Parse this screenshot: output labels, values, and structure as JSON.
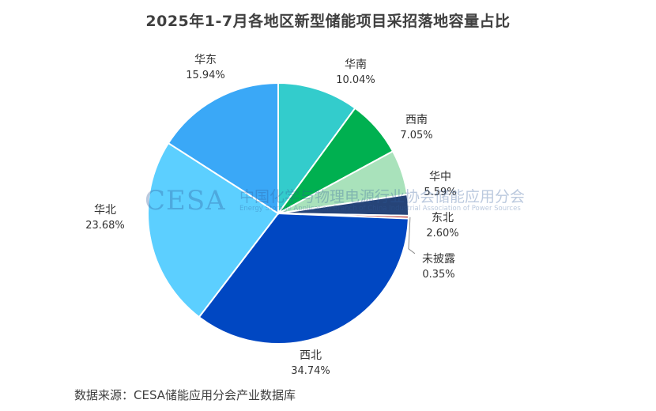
{
  "chart_data": {
    "type": "pie",
    "title": "2025年1-7月各地区新型储能项目采招落地容量占比",
    "unit": "%",
    "slices": [
      {
        "name": "华南",
        "value": 10.04,
        "pct_label": "10.04%",
        "color": "#33CCCC"
      },
      {
        "name": "西南",
        "value": 7.05,
        "pct_label": "7.05%",
        "color": "#00B050"
      },
      {
        "name": "华中",
        "value": 5.59,
        "pct_label": "5.59%",
        "color": "#A9E2BB"
      },
      {
        "name": "东北",
        "value": 2.6,
        "pct_label": "2.60%",
        "color": "#264478"
      },
      {
        "name": "未披露",
        "value": 0.35,
        "pct_label": "0.35%",
        "color": "#C0504D"
      },
      {
        "name": "西北",
        "value": 34.74,
        "pct_label": "34.74%",
        "color": "#0047C2"
      },
      {
        "name": "华北",
        "value": 23.68,
        "pct_label": "23.68%",
        "color": "#5CCFFF"
      },
      {
        "name": "华东",
        "value": 15.94,
        "pct_label": "15.94%",
        "color": "#3AA8F7"
      }
    ]
  },
  "watermark": {
    "logo": "CESA",
    "cn": "中国化学与物理电源行业协会储能应用分会",
    "en": "Energy Storage Application Branch of China Industrial Association of Power Sources"
  },
  "source_note": "数据来源：CESA储能应用分会产业数据库"
}
